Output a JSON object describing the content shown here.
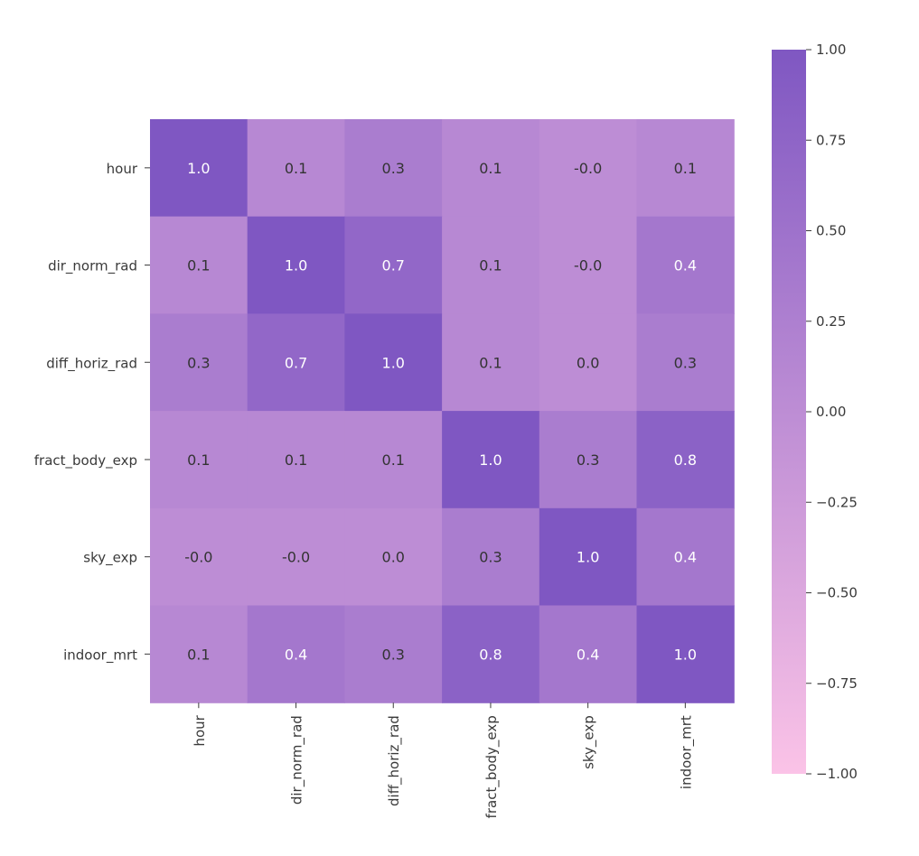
{
  "chart_data": {
    "type": "heatmap",
    "title": "",
    "xlabel": "",
    "ylabel": "",
    "row_labels": [
      "hour",
      "dir_norm_rad",
      "diff_horiz_rad",
      "fract_body_exp",
      "sky_exp",
      "indoor_mrt"
    ],
    "col_labels": [
      "hour",
      "dir_norm_rad",
      "diff_horiz_rad",
      "fract_body_exp",
      "sky_exp",
      "indoor_mrt"
    ],
    "values": [
      [
        1.0,
        0.1,
        0.3,
        0.1,
        -0.0,
        0.1
      ],
      [
        0.1,
        1.0,
        0.7,
        0.1,
        -0.0,
        0.4
      ],
      [
        0.3,
        0.7,
        1.0,
        0.1,
        0.0,
        0.3
      ],
      [
        0.1,
        0.1,
        0.1,
        1.0,
        0.3,
        0.8
      ],
      [
        -0.0,
        -0.0,
        0.0,
        0.3,
        1.0,
        0.4
      ],
      [
        0.1,
        0.4,
        0.3,
        0.8,
        0.4,
        1.0
      ]
    ],
    "cell_labels": [
      [
        "1.0",
        "0.1",
        "0.3",
        "0.1",
        "-0.0",
        "0.1"
      ],
      [
        "0.1",
        "1.0",
        "0.7",
        "0.1",
        "-0.0",
        "0.4"
      ],
      [
        "0.3",
        "0.7",
        "1.0",
        "0.1",
        "0.0",
        "0.3"
      ],
      [
        "0.1",
        "0.1",
        "0.1",
        "1.0",
        "0.3",
        "0.8"
      ],
      [
        "-0.0",
        "-0.0",
        "0.0",
        "0.3",
        "1.0",
        "0.4"
      ],
      [
        "0.1",
        "0.4",
        "0.3",
        "0.8",
        "0.4",
        "1.0"
      ]
    ],
    "colorbar": {
      "range": [
        -1.0,
        1.0
      ],
      "ticks": [
        1.0,
        0.75,
        0.5,
        0.25,
        0.0,
        -0.25,
        -0.5,
        -0.75,
        -1.0
      ],
      "tick_labels": [
        "1.00",
        "0.75",
        "0.50",
        "0.25",
        "0.00",
        "−0.25",
        "−0.50",
        "−0.75",
        "−1.00"
      ],
      "low_color": "#fbc3e7",
      "high_color": "#7f57c2"
    },
    "grid": false,
    "legend": "colorbar-right"
  }
}
